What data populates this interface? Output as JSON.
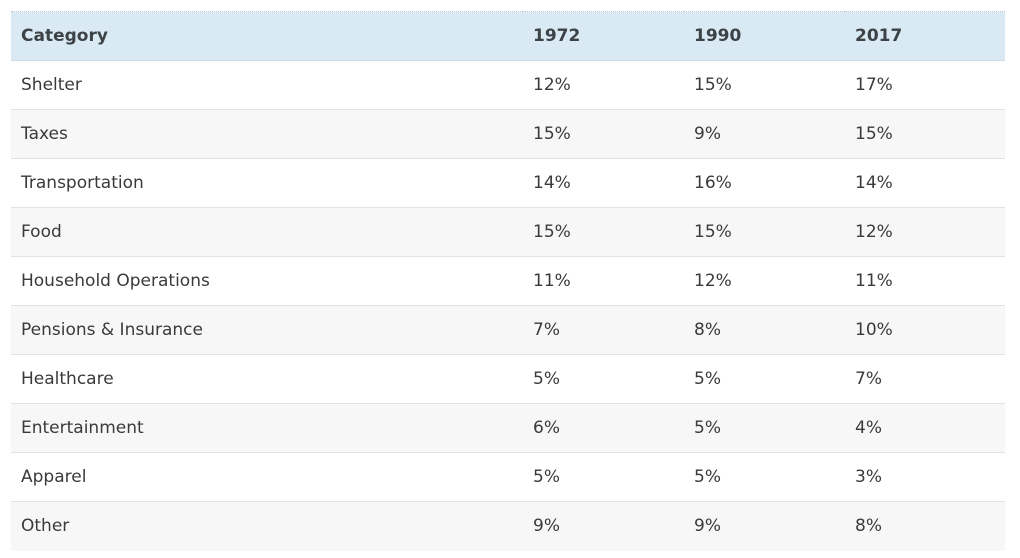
{
  "table": {
    "headers": [
      "Category",
      "1972",
      "1990",
      "2017"
    ],
    "rows": [
      [
        "Shelter",
        "12%",
        "15%",
        "17%"
      ],
      [
        "Taxes",
        "15%",
        "9%",
        "15%"
      ],
      [
        "Transportation",
        "14%",
        "16%",
        "14%"
      ],
      [
        "Food",
        "15%",
        "15%",
        "12%"
      ],
      [
        "Household Operations",
        "11%",
        "12%",
        "11%"
      ],
      [
        "Pensions & Insurance",
        "7%",
        "8%",
        "10%"
      ],
      [
        "Healthcare",
        "5%",
        "5%",
        "7%"
      ],
      [
        "Entertainment",
        "6%",
        "5%",
        "4%"
      ],
      [
        "Apparel",
        "5%",
        "5%",
        "3%"
      ],
      [
        "Other",
        "9%",
        "9%",
        "8%"
      ]
    ]
  },
  "colors": {
    "header_background": "#daeaf4",
    "alt_row_background": "#f7f7f7",
    "text": "#3a3a3a"
  }
}
